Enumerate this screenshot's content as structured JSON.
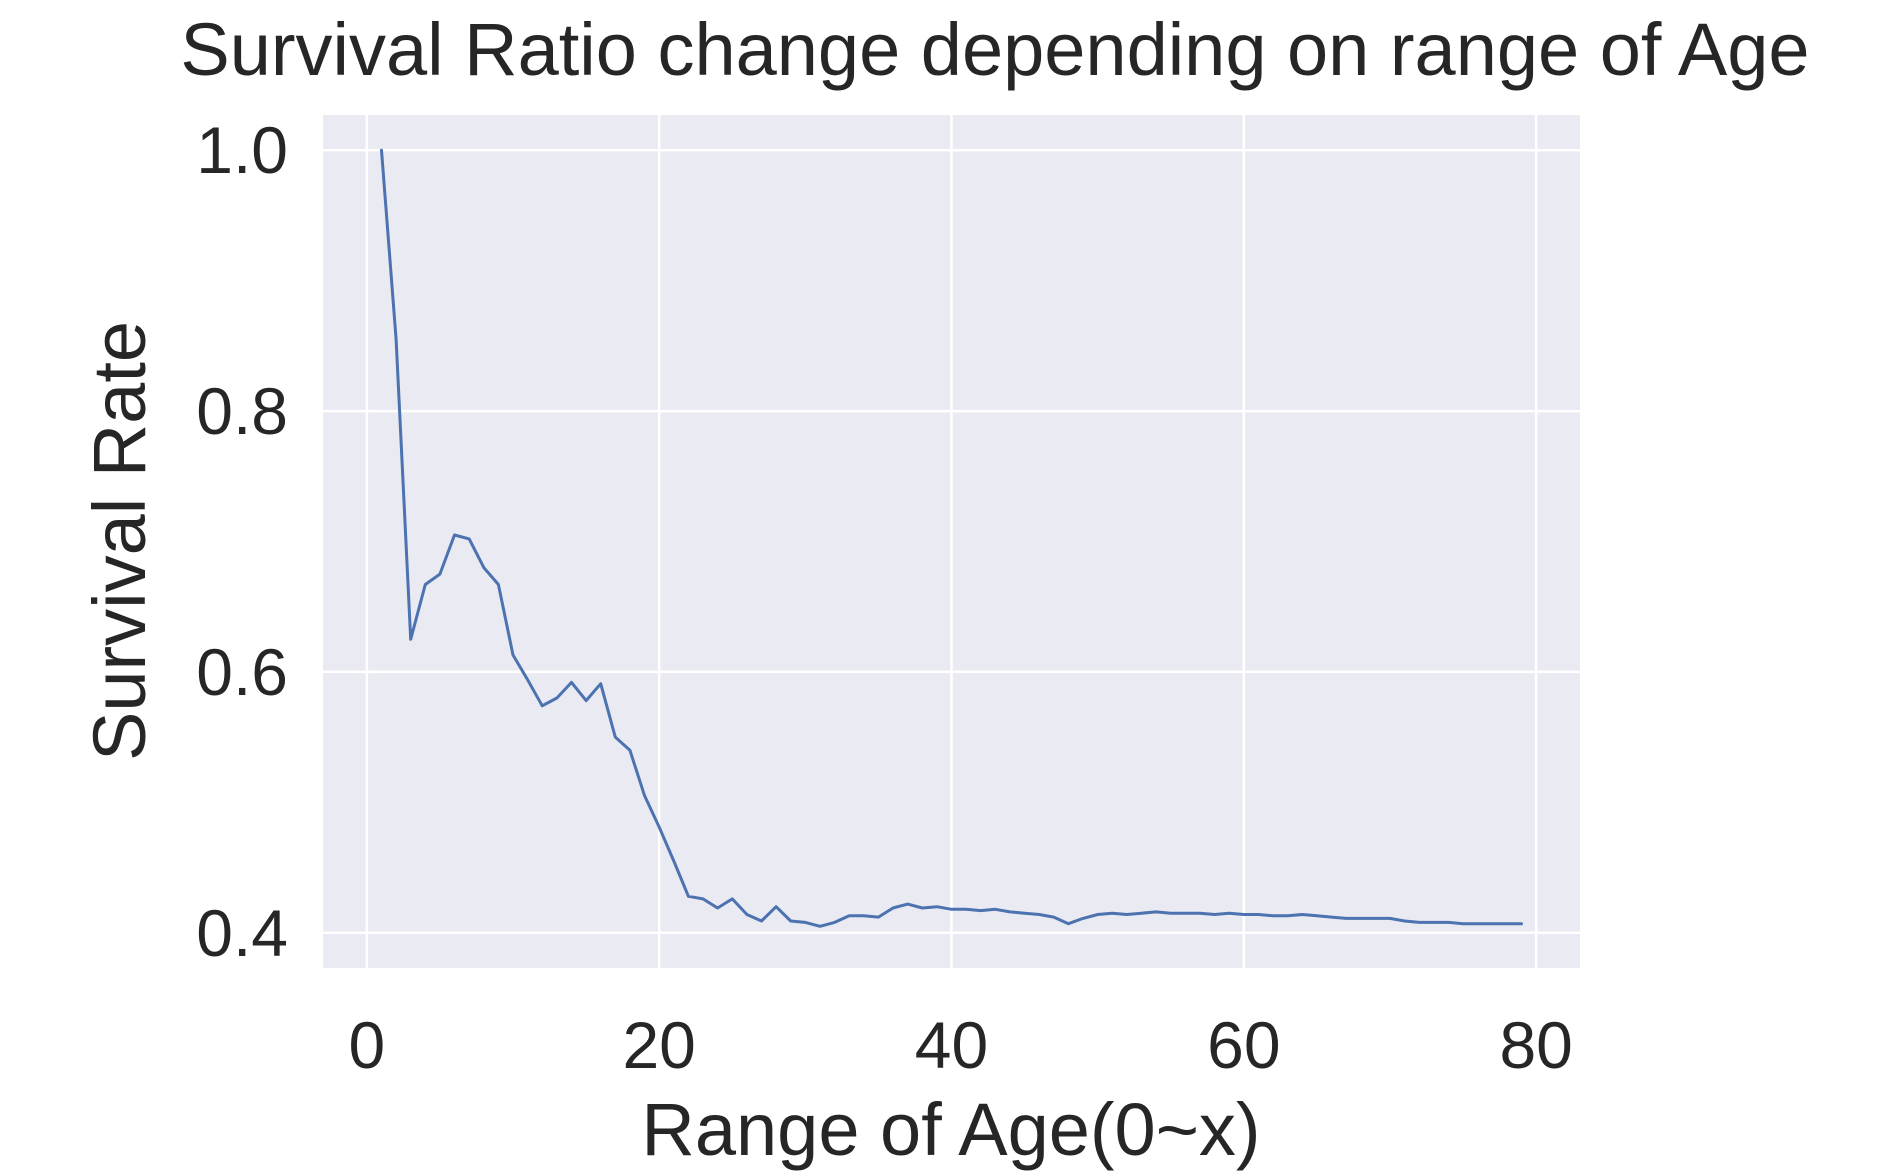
{
  "chart_data": {
    "type": "line",
    "title": "Survival Ratio change depending on range of Age",
    "xlabel": "Range of Age(0~x)",
    "ylabel": "Survival Rate",
    "xlim": [
      -3.0,
      83.0
    ],
    "ylim": [
      0.373,
      1.027
    ],
    "xticks": [
      0,
      20,
      40,
      60,
      80
    ],
    "xtick_labels": [
      "0",
      "20",
      "40",
      "60",
      "80"
    ],
    "yticks": [
      0.4,
      0.6,
      0.8,
      1.0
    ],
    "ytick_labels": [
      "0.4",
      "0.6",
      "0.8",
      "1.0"
    ],
    "grid": true,
    "legend": "none",
    "colors": {
      "background": "#eaeaf2",
      "grid": "#ffffff",
      "line": "#4c72b0",
      "text": "#262626"
    },
    "series": [
      {
        "x": [
          1,
          2,
          3,
          4,
          5,
          6,
          7,
          8,
          9,
          10,
          11,
          12,
          13,
          14,
          15,
          16,
          17,
          18,
          19,
          20,
          21,
          22,
          23,
          24,
          25,
          26,
          27,
          28,
          29,
          30,
          31,
          32,
          33,
          34,
          35,
          36,
          37,
          38,
          39,
          40,
          41,
          42,
          43,
          44,
          45,
          46,
          47,
          48,
          49,
          50,
          51,
          52,
          53,
          54,
          55,
          56,
          57,
          58,
          59,
          60,
          61,
          62,
          63,
          64,
          65,
          66,
          67,
          68,
          69,
          70,
          71,
          72,
          73,
          74,
          75,
          76,
          77,
          78,
          79
        ],
        "values": [
          1.0,
          0.855,
          0.625,
          0.667,
          0.675,
          0.705,
          0.702,
          0.68,
          0.667,
          0.613,
          0.594,
          0.574,
          0.58,
          0.592,
          0.578,
          0.591,
          0.55,
          0.54,
          0.505,
          0.481,
          0.455,
          0.428,
          0.426,
          0.419,
          0.426,
          0.414,
          0.409,
          0.42,
          0.409,
          0.408,
          0.405,
          0.408,
          0.413,
          0.413,
          0.412,
          0.419,
          0.422,
          0.419,
          0.42,
          0.418,
          0.418,
          0.417,
          0.418,
          0.416,
          0.415,
          0.414,
          0.412,
          0.407,
          0.411,
          0.414,
          0.415,
          0.414,
          0.415,
          0.416,
          0.415,
          0.415,
          0.415,
          0.414,
          0.415,
          0.414,
          0.414,
          0.413,
          0.413,
          0.414,
          0.413,
          0.412,
          0.411,
          0.411,
          0.411,
          0.411,
          0.409,
          0.408,
          0.408,
          0.408,
          0.407,
          0.407,
          0.407,
          0.407,
          0.407
        ]
      }
    ]
  }
}
